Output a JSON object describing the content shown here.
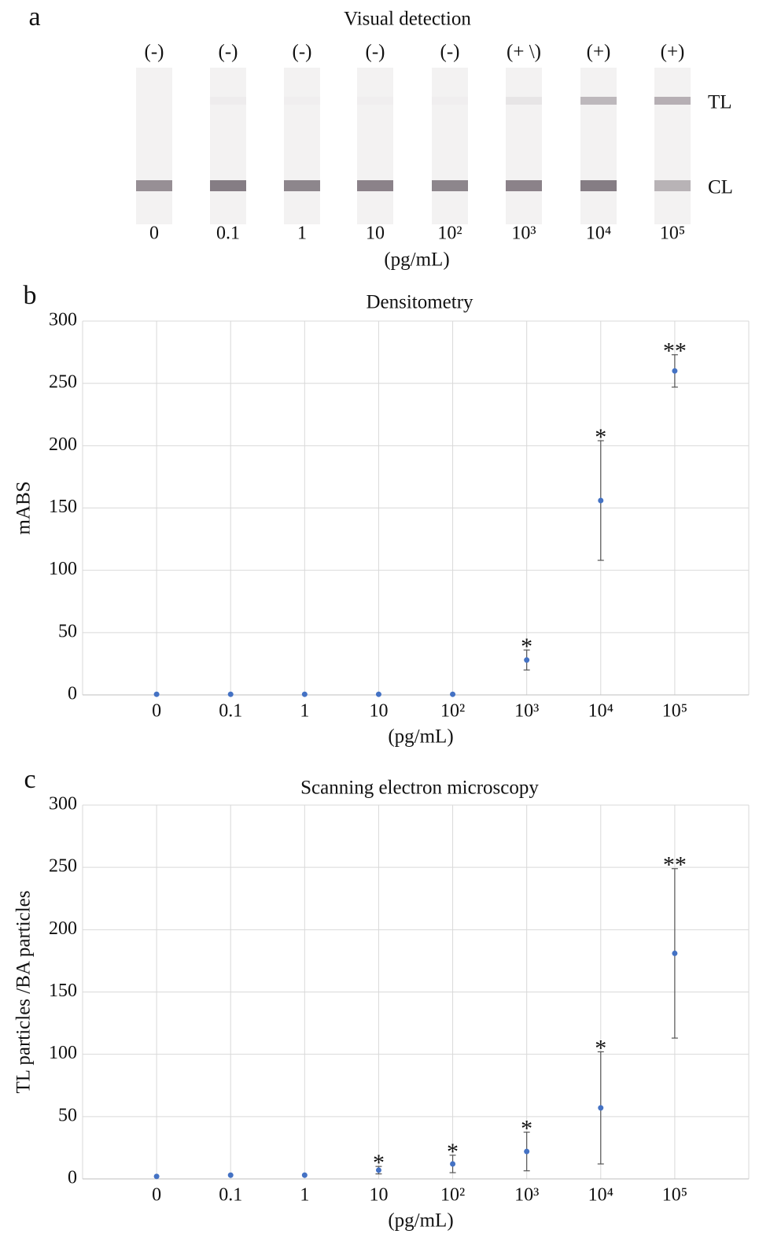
{
  "panel_a": {
    "panel_label": "a",
    "title": "Visual detection",
    "results": [
      "(-)",
      "(-)",
      "(-)",
      "(-)",
      "(-)",
      "(+ \\)",
      "(+)",
      "(+)"
    ],
    "concentrations": [
      "0",
      "0.1",
      "1",
      "10",
      "10²",
      "10³",
      "10⁴",
      "10⁵"
    ],
    "unit": "(pg/mL)",
    "line_labels": [
      "TL",
      "CL"
    ]
  },
  "chart_data": [
    {
      "type": "scatter",
      "panel_label": "b",
      "title": "Densitometry",
      "y_label": "mABS",
      "x_label": "(pg/mL)",
      "categories": [
        "0",
        "0.1",
        "1",
        "10",
        "10²",
        "10³",
        "10⁴",
        "10⁵"
      ],
      "values": [
        0.5,
        0.5,
        0.5,
        0.5,
        0.5,
        28,
        156,
        260
      ],
      "errors": [
        0,
        0,
        0,
        0,
        0,
        8,
        48,
        13
      ],
      "significance": [
        null,
        null,
        null,
        null,
        null,
        "*",
        "*",
        "**"
      ],
      "color": "#4472c4",
      "ylim": [
        0,
        300
      ],
      "yticks": [
        0,
        50,
        100,
        150,
        200,
        250,
        300
      ],
      "grid": true
    },
    {
      "type": "scatter",
      "panel_label": "c",
      "title": "Scanning electron microscopy",
      "y_label": "TL particles /BA particles",
      "x_label": "(pg/mL)",
      "categories": [
        "0",
        "0.1",
        "1",
        "10",
        "10²",
        "10³",
        "10⁴",
        "10⁵"
      ],
      "values": [
        2,
        3,
        3,
        7,
        12,
        22,
        57,
        181
      ],
      "errors": [
        0,
        0,
        0,
        3,
        7,
        15.5,
        45,
        68
      ],
      "significance": [
        null,
        null,
        null,
        "*",
        "*",
        "*",
        "*",
        "**"
      ],
      "color": "#4472c4",
      "ylim": [
        0,
        300
      ],
      "yticks": [
        0,
        50,
        100,
        150,
        200,
        250,
        300
      ],
      "grid": true
    }
  ]
}
